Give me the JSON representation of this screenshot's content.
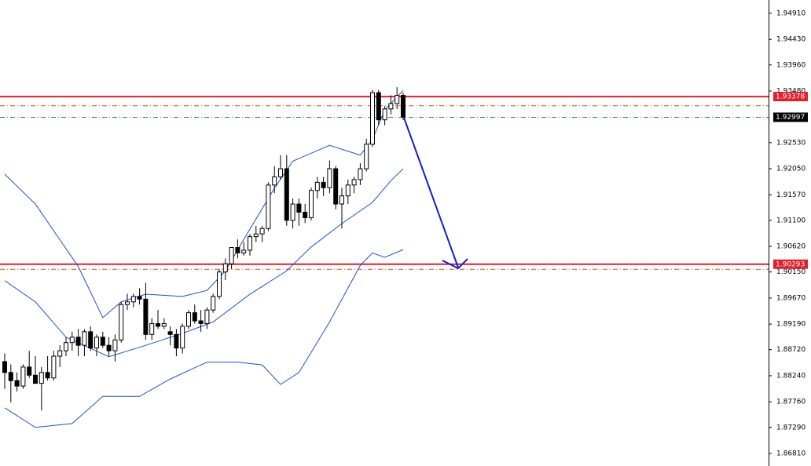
{
  "chart_data": {
    "type": "candlestick",
    "ylim": [
      1.86579,
      1.95155
    ],
    "yticks": [
      {
        "value": 1.9491,
        "label": "1.94910"
      },
      {
        "value": 1.9443,
        "label": "1.94430"
      },
      {
        "value": 1.9396,
        "label": "1.93960"
      },
      {
        "value": 1.9348,
        "label": "1.93480"
      },
      {
        "value": 1.9253,
        "label": "1.92530"
      },
      {
        "value": 1.9205,
        "label": "1.92050"
      },
      {
        "value": 1.9157,
        "label": "1.91570"
      },
      {
        "value": 1.911,
        "label": "1.91100"
      },
      {
        "value": 1.9062,
        "label": "1.90620"
      },
      {
        "value": 1.9015,
        "label": "1.90150"
      },
      {
        "value": 1.8967,
        "label": "1.89670"
      },
      {
        "value": 1.8919,
        "label": "1.89190"
      },
      {
        "value": 1.8872,
        "label": "1.88720"
      },
      {
        "value": 1.8824,
        "label": "1.88240"
      },
      {
        "value": 1.8776,
        "label": "1.87760"
      },
      {
        "value": 1.8729,
        "label": "1.87290"
      },
      {
        "value": 1.8681,
        "label": "1.86810"
      }
    ],
    "candles": {
      "up_color": "#ffffff",
      "down_color": "#000000",
      "open": [
        1.885,
        1.883,
        1.8815,
        1.8805,
        1.884,
        1.8825,
        1.881,
        1.883,
        1.882,
        1.886,
        1.887,
        1.8885,
        1.8895,
        1.888,
        1.8905,
        1.8875,
        1.8895,
        1.888,
        1.887,
        1.889,
        1.8955,
        1.896,
        1.897,
        1.8965,
        1.89,
        1.892,
        1.8915,
        1.8905,
        1.89,
        1.8875,
        1.8915,
        1.894,
        1.8925,
        1.892,
        1.8945,
        1.897,
        1.9015,
        1.903,
        1.906,
        1.905,
        1.9055,
        1.908,
        1.9085,
        1.9095,
        1.9175,
        1.919,
        1.9205,
        1.911,
        1.914,
        1.9125,
        1.9115,
        1.9165,
        1.918,
        1.917,
        1.9205,
        1.914,
        1.9155,
        1.9175,
        1.9185,
        1.9205,
        1.925,
        1.9345,
        1.9295,
        1.9315,
        1.9325,
        1.934
      ],
      "high": [
        1.8865,
        1.8845,
        1.883,
        1.8845,
        1.887,
        1.886,
        1.884,
        1.886,
        1.887,
        1.888,
        1.8895,
        1.8905,
        1.891,
        1.891,
        1.8915,
        1.89,
        1.8905,
        1.8895,
        1.89,
        1.896,
        1.8975,
        1.8975,
        1.8985,
        1.8995,
        1.893,
        1.8945,
        1.893,
        1.8915,
        1.891,
        1.892,
        1.8945,
        1.8955,
        1.8945,
        1.895,
        1.8975,
        1.902,
        1.904,
        1.906,
        1.9075,
        1.907,
        1.9085,
        1.91,
        1.91,
        1.918,
        1.921,
        1.923,
        1.923,
        1.915,
        1.915,
        1.914,
        1.917,
        1.919,
        1.919,
        1.922,
        1.921,
        1.917,
        1.9185,
        1.919,
        1.9215,
        1.926,
        1.935,
        1.935,
        1.932,
        1.934,
        1.9355,
        1.9345
      ],
      "low": [
        1.88,
        1.8775,
        1.8795,
        1.88,
        1.882,
        1.881,
        1.876,
        1.8815,
        1.8815,
        1.884,
        1.886,
        1.887,
        1.886,
        1.886,
        1.887,
        1.886,
        1.8875,
        1.886,
        1.885,
        1.8885,
        1.8945,
        1.895,
        1.8955,
        1.889,
        1.889,
        1.891,
        1.891,
        1.888,
        1.886,
        1.8865,
        1.891,
        1.892,
        1.8905,
        1.891,
        1.894,
        1.8965,
        1.9,
        1.902,
        1.904,
        1.9045,
        1.9045,
        1.907,
        1.907,
        1.909,
        1.916,
        1.9185,
        1.91,
        1.9095,
        1.91,
        1.9105,
        1.911,
        1.915,
        1.9155,
        1.916,
        1.913,
        1.9095,
        1.914,
        1.916,
        1.9175,
        1.92,
        1.9245,
        1.9285,
        1.9285,
        1.9305,
        1.9315,
        1.9295
      ],
      "close": [
        1.883,
        1.8815,
        1.8805,
        1.884,
        1.8825,
        1.881,
        1.883,
        1.882,
        1.886,
        1.887,
        1.8885,
        1.8895,
        1.888,
        1.8905,
        1.8875,
        1.8895,
        1.888,
        1.887,
        1.889,
        1.8955,
        1.896,
        1.897,
        1.8965,
        1.89,
        1.892,
        1.8915,
        1.892,
        1.89,
        1.8875,
        1.8915,
        1.894,
        1.8925,
        1.892,
        1.8945,
        1.897,
        1.9015,
        1.903,
        1.906,
        1.905,
        1.9055,
        1.908,
        1.9085,
        1.9095,
        1.9175,
        1.919,
        1.9205,
        1.911,
        1.914,
        1.9125,
        1.9115,
        1.9165,
        1.918,
        1.917,
        1.9205,
        1.914,
        1.9155,
        1.9175,
        1.9185,
        1.9205,
        1.925,
        1.9345,
        1.9295,
        1.9315,
        1.9325,
        1.934,
        1.93
      ]
    },
    "series": [
      {
        "color": "#1f4fd0",
        "x": [
          0,
          5,
          12,
          16,
          19,
          23,
          29,
          33,
          36,
          39,
          44,
          47,
          53,
          58,
          60,
          62,
          65
        ],
        "values": [
          1.9195,
          1.914,
          1.9025,
          1.8931,
          1.896,
          1.8974,
          1.897,
          1.8981,
          1.9017,
          1.9075,
          1.9169,
          1.9219,
          1.9248,
          1.923,
          1.9259,
          1.9313,
          1.9349
        ]
      },
      {
        "color": "#1f4fd0",
        "x": [
          0,
          5,
          10,
          17,
          23,
          29,
          34,
          40,
          46,
          50,
          55,
          60,
          63,
          65
        ],
        "values": [
          1.8999,
          1.896,
          1.8895,
          1.8859,
          1.888,
          1.8902,
          1.8923,
          1.8974,
          1.9017,
          1.9061,
          1.9104,
          1.9143,
          1.9183,
          1.9205
        ]
      },
      {
        "color": "#1f4fd0",
        "x": [
          0,
          5,
          11,
          16,
          22,
          27,
          33,
          38,
          42,
          45,
          48,
          53,
          58,
          60,
          62,
          65
        ],
        "values": [
          1.8765,
          1.8729,
          1.8736,
          1.8786,
          1.8786,
          1.8818,
          1.8849,
          1.8849,
          1.8844,
          1.8808,
          1.883,
          1.8923,
          1.9027,
          1.905,
          1.9042,
          1.9056
        ]
      }
    ],
    "levels": [
      {
        "value": 1.93378,
        "color": "#e0202c",
        "style": "solid",
        "tag_color": "#e0202c"
      },
      {
        "value": 1.9321,
        "color": "#e05020",
        "style": "dashdot"
      },
      {
        "value": 1.92997,
        "color": "#2a8a2a",
        "style": "dashdot",
        "tag_color": "#000000"
      },
      {
        "value": 1.90293,
        "color": "#e0202c",
        "style": "solid",
        "tag_color": "#e0202c"
      },
      {
        "value": 1.902,
        "color": "#e05020",
        "style": "dashdot"
      }
    ]
  }
}
